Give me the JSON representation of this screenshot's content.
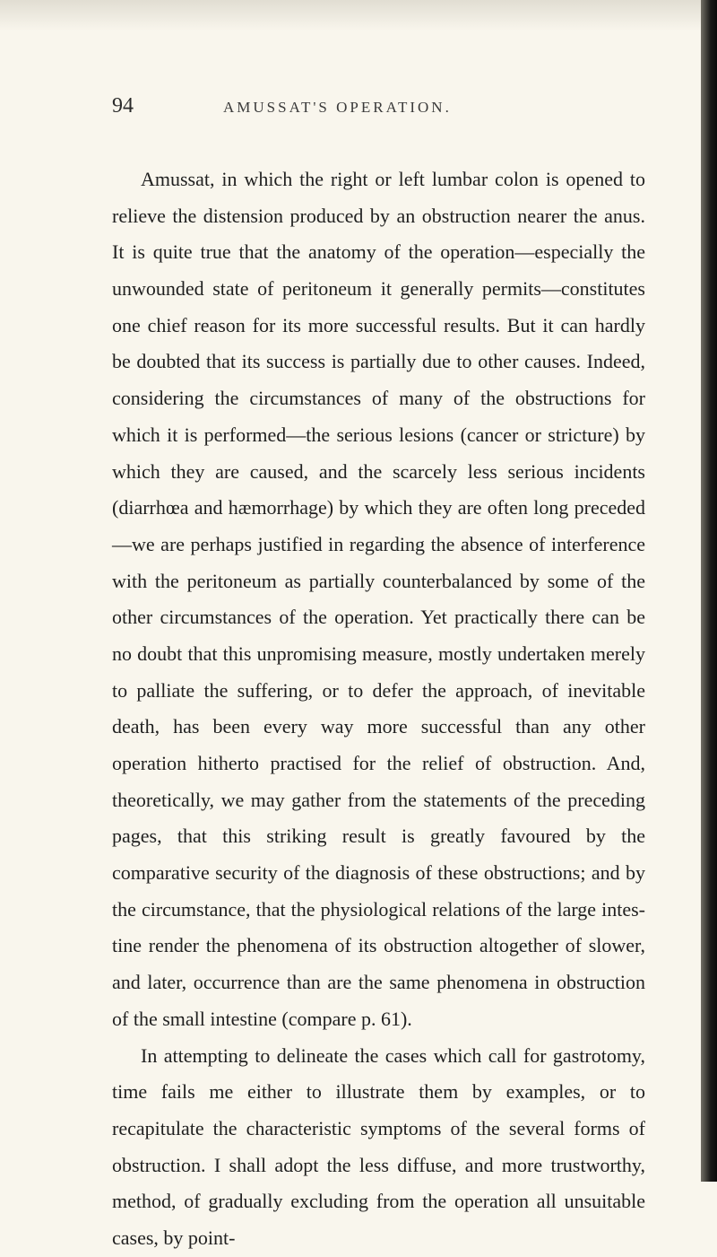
{
  "page": {
    "number": "94",
    "running_head": "AMUSSAT'S OPERATION.",
    "paragraph1": "Amussat, in which the right or left lumbar colon is opened to relieve the distension produced by an obstruction nearer the anus. It is quite true that the anatomy of the opera­tion—especially the unwounded state of peritoneum it generally permits—constitutes one chief reason for its more successful results. But it can hardly be doubted that its success is partially due to other causes. Indeed, consider­ing the circumstances of many of the obstructions for which it is performed—the serious lesions (cancer or stricture) by which they are caused, and the scarcely less serious incidents (diarrhœa and hæmorrhage) by which they are often long preceded—we are perhaps justified in regarding the absence of interference with the peritoneum as partially counterbalanced by some of the other circum­stances of the operation. Yet practically there can be no doubt that this unpromising measure, mostly undertaken merely to palliate the suffering, or to defer the approach, of inevitable death, has been every way more successful than any other operation hitherto practised for the relief of obstruction. And, theoretically, we may gather from the statements of the preceding pages, that this striking result is greatly favoured by the comparative security of the diagnosis of these obstructions; and by the circum­stance, that the physiological relations of the large intes­tine render the phenomena of its obstruction altogether of slower, and later, occurrence than are the same phenomena in obstruction of the small intestine (compare p. 61).",
    "paragraph2": "In attempting to delineate the cases which call for gastrotomy, time fails me either to illustrate them by ex­amples, or to recapitulate the characteristic symptoms of the several forms of obstruction. I shall adopt the less diffuse, and more trustworthy, method, of gradually ex­cluding from the operation all unsuitable cases, by point-"
  },
  "colors": {
    "background": "#f9f6ed",
    "text": "#1f1f1f",
    "header_text": "#3a3a3a",
    "edge_dark": "#0a0a0a"
  },
  "typography": {
    "body_fontsize": 22,
    "pagenum_fontsize": 24,
    "runhead_fontsize": 17,
    "line_height": 1.85
  }
}
